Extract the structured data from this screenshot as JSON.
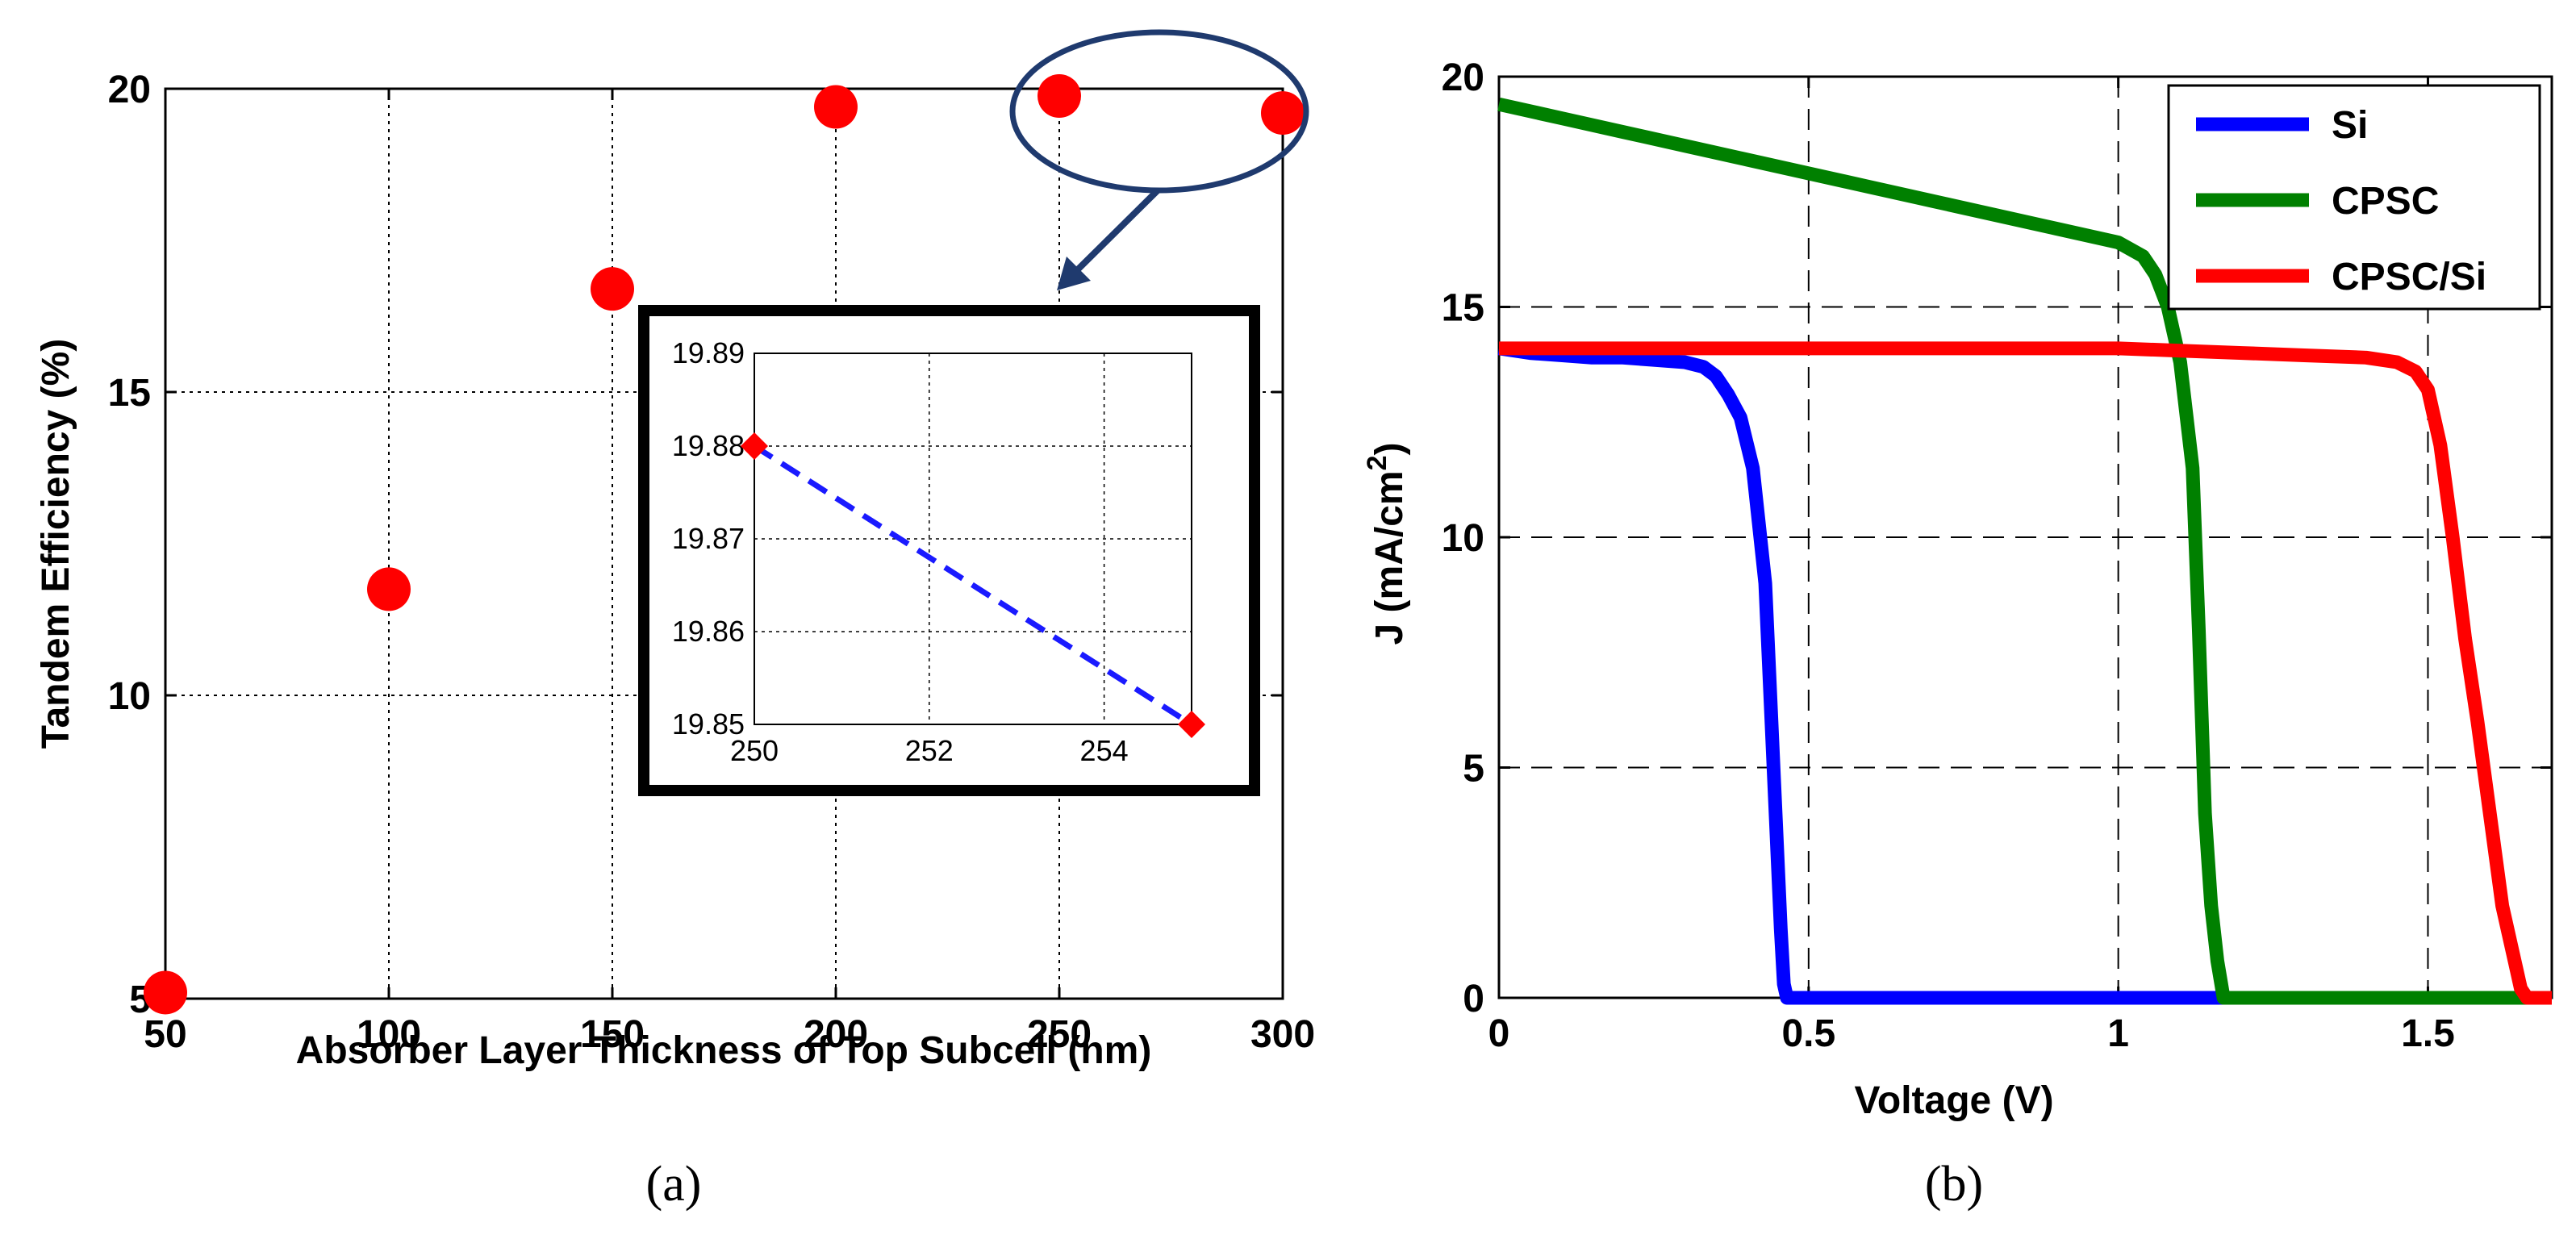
{
  "chart_data": [
    {
      "type": "scatter",
      "panel_label": "(a)",
      "xlabel": "Absorber Layer Thickness of Top Subcell  (nm)",
      "ylabel": "Tandem Efficiency (%)",
      "xlim": [
        50,
        300
      ],
      "ylim": [
        5,
        20
      ],
      "xticks": [
        "50",
        "100",
        "150",
        "200",
        "250",
        "300"
      ],
      "yticks": [
        "5",
        "10",
        "15",
        "20"
      ],
      "grid": true,
      "color": "#ff0000",
      "points": [
        {
          "x": 50,
          "y": 5.1
        },
        {
          "x": 100,
          "y": 11.75
        },
        {
          "x": 150,
          "y": 16.7
        },
        {
          "x": 200,
          "y": 19.7
        },
        {
          "x": 250,
          "y": 19.88
        },
        {
          "x": 300,
          "y": 19.6
        }
      ],
      "callout": "highlight on 250 nm and 300 nm points",
      "inset": {
        "type": "line",
        "xlim": [
          250,
          255
        ],
        "ylim": [
          19.85,
          19.89
        ],
        "xticks": [
          "250",
          "252",
          "254"
        ],
        "yticks": [
          "19.85",
          "19.86",
          "19.87",
          "19.88",
          "19.89"
        ],
        "grid": true,
        "line_color": "#1a1aff",
        "marker_color": "#ff0000",
        "points": [
          {
            "x": 250,
            "y": 19.88
          },
          {
            "x": 255,
            "y": 19.85
          }
        ]
      }
    },
    {
      "type": "line",
      "panel_label": "(b)",
      "xlabel": "Voltage (V)",
      "ylabel": "J (mA/cm",
      "ylabel_sup": "2",
      "ylabel_end": ")",
      "xlim": [
        0,
        1.7
      ],
      "ylim": [
        0,
        20
      ],
      "xticks": [
        "0",
        "0.5",
        "1",
        "1.5"
      ],
      "yticks": [
        "0",
        "5",
        "10",
        "15",
        "20"
      ],
      "grid": true,
      "legend_position": "top-right",
      "series": [
        {
          "name": "Si",
          "color": "#0000ff",
          "x": [
            0,
            0.05,
            0.1,
            0.15,
            0.2,
            0.25,
            0.3,
            0.33,
            0.35,
            0.37,
            0.39,
            0.41,
            0.43,
            0.44,
            0.45,
            0.455,
            0.46,
            0.465,
            0.47,
            0.5,
            0.8,
            1.0,
            1.3,
            1.7
          ],
          "y": [
            14.1,
            14.0,
            13.95,
            13.9,
            13.9,
            13.85,
            13.8,
            13.7,
            13.5,
            13.1,
            12.6,
            11.5,
            9.0,
            6.0,
            3.0,
            1.5,
            0.3,
            0,
            0,
            0,
            0,
            0,
            0,
            0
          ]
        },
        {
          "name": "CPSC",
          "color": "#008000",
          "x": [
            0,
            0.1,
            0.2,
            0.3,
            0.4,
            0.5,
            0.6,
            0.7,
            0.8,
            0.9,
            1.0,
            1.04,
            1.06,
            1.08,
            1.1,
            1.12,
            1.13,
            1.14,
            1.15,
            1.16,
            1.17,
            1.2,
            1.4,
            1.7
          ],
          "y": [
            19.4,
            19.1,
            18.8,
            18.5,
            18.2,
            17.9,
            17.6,
            17.3,
            17.0,
            16.7,
            16.4,
            16.1,
            15.7,
            15.0,
            13.8,
            11.5,
            8.0,
            4.0,
            2.0,
            0.8,
            0,
            0,
            0,
            0
          ]
        },
        {
          "name": "CPSC/Si",
          "color": "#ff0000",
          "x": [
            0,
            0.2,
            0.4,
            0.6,
            0.8,
            1.0,
            1.1,
            1.2,
            1.3,
            1.4,
            1.45,
            1.48,
            1.5,
            1.52,
            1.54,
            1.56,
            1.58,
            1.6,
            1.62,
            1.64,
            1.65,
            1.66,
            1.7
          ],
          "y": [
            14.1,
            14.1,
            14.1,
            14.1,
            14.1,
            14.1,
            14.05,
            14.0,
            13.95,
            13.9,
            13.8,
            13.6,
            13.2,
            12.0,
            10.0,
            7.8,
            6.0,
            4.0,
            2.0,
            0.8,
            0.2,
            0,
            0
          ]
        }
      ]
    }
  ]
}
